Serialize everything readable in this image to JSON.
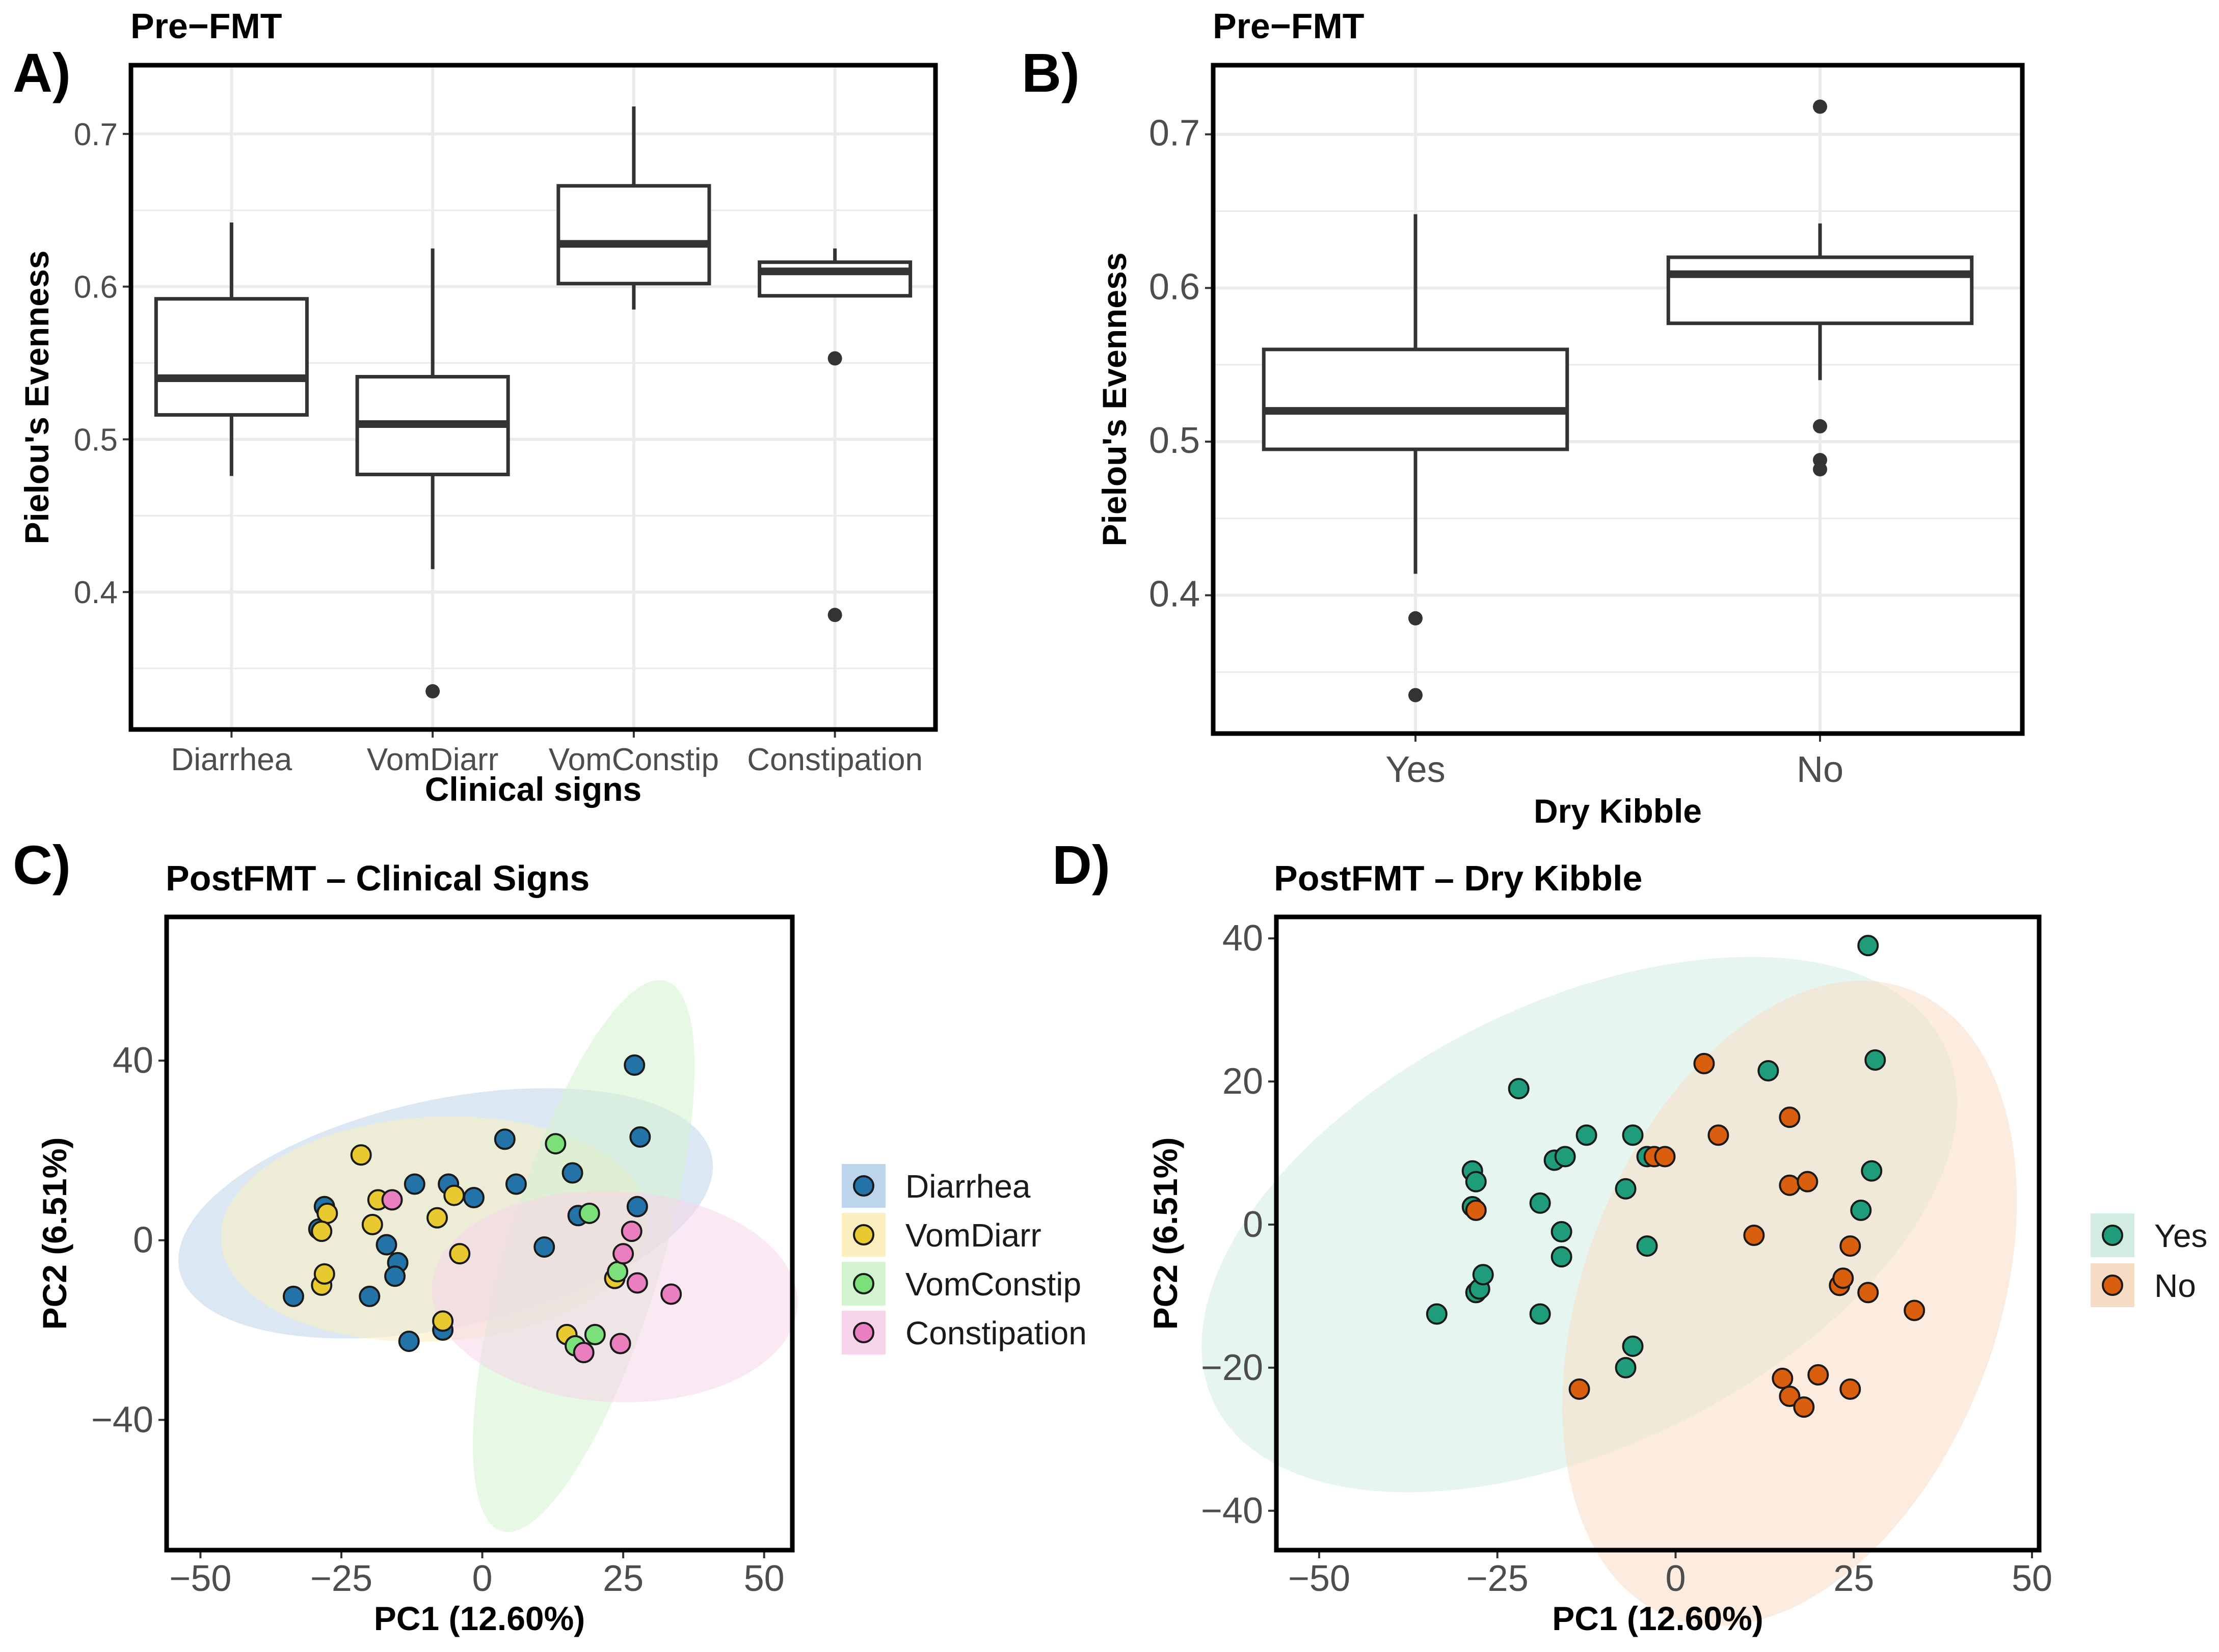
{
  "chart_data": [
    {
      "panel": "A)",
      "type": "box",
      "title": "Pre−FMT",
      "xlabel": "Clinical signs",
      "ylabel": "Pielou's Evenness",
      "ylim": [
        0.31,
        0.745
      ],
      "yticks": [
        0.4,
        0.5,
        0.6,
        0.7
      ],
      "ytick_labels": [
        "0.4",
        "0.5",
        "0.6",
        "0.7"
      ],
      "categories": [
        "Diarrhea",
        "VomDiarr",
        "VomConstip",
        "Constipation"
      ],
      "boxes": [
        {
          "category": "Diarrhea",
          "whisker_low": 0.476,
          "q1": 0.516,
          "median": 0.54,
          "q3": 0.592,
          "whisker_high": 0.642,
          "outliers": []
        },
        {
          "category": "VomDiarr",
          "whisker_low": 0.415,
          "q1": 0.477,
          "median": 0.51,
          "q3": 0.541,
          "whisker_high": 0.625,
          "outliers": [
            0.335
          ]
        },
        {
          "category": "VomConstip",
          "whisker_low": 0.585,
          "q1": 0.602,
          "median": 0.628,
          "q3": 0.666,
          "whisker_high": 0.718,
          "outliers": []
        },
        {
          "category": "Constipation",
          "whisker_low": 0.594,
          "q1": 0.594,
          "median": 0.61,
          "q3": 0.616,
          "whisker_high": 0.625,
          "outliers": [
            0.553,
            0.385
          ]
        }
      ]
    },
    {
      "panel": "B)",
      "type": "box",
      "title": "Pre−FMT",
      "xlabel": "Dry Kibble",
      "ylabel": "Pielou's Evenness",
      "ylim": [
        0.31,
        0.745
      ],
      "yticks": [
        0.4,
        0.5,
        0.6,
        0.7
      ],
      "ytick_labels": [
        "0.4",
        "0.5",
        "0.6",
        "0.7"
      ],
      "categories": [
        "Yes",
        "No"
      ],
      "boxes": [
        {
          "category": "Yes",
          "whisker_low": 0.414,
          "q1": 0.495,
          "median": 0.52,
          "q3": 0.56,
          "whisker_high": 0.648,
          "outliers": [
            0.385,
            0.335
          ]
        },
        {
          "category": "No",
          "whisker_low": 0.54,
          "q1": 0.577,
          "median": 0.609,
          "q3": 0.62,
          "whisker_high": 0.642,
          "outliers": [
            0.718,
            0.51,
            0.488,
            0.482
          ]
        }
      ]
    },
    {
      "panel": "C)",
      "type": "scatter",
      "title": "PostFMT – Clinical Signs",
      "xlabel": "PC1 (12.60%)",
      "ylabel": "PC2 (6.51%)",
      "xlim": [
        -56,
        55
      ],
      "ylim": [
        -69,
        72
      ],
      "xticks": [
        -50,
        -25,
        0,
        25,
        50
      ],
      "xtick_labels": [
        "−50",
        "−25",
        "0",
        "25",
        "50"
      ],
      "yticks": [
        -40,
        0,
        40
      ],
      "ytick_labels": [
        "−40",
        "0",
        "40"
      ],
      "legend_position": "right",
      "series": [
        {
          "name": "Diarrhea",
          "color": "#2473A8",
          "fill": "#BDD5EA",
          "ellipse": {
            "cx": -6.5,
            "cy": 6,
            "rx": 49,
            "ry": 25,
            "angle": 17
          },
          "points": [
            [
              -33.5,
              -12.5
            ],
            [
              -29,
              2.5
            ],
            [
              -28,
              7.5
            ],
            [
              -20,
              -12.5
            ],
            [
              -17,
              -1
            ],
            [
              -15,
              -5
            ],
            [
              -15.5,
              -8
            ],
            [
              -13,
              -22.5
            ],
            [
              -12,
              12.5
            ],
            [
              -7,
              -20
            ],
            [
              -6,
              12.5
            ],
            [
              -1.5,
              9.5
            ],
            [
              4,
              22.5
            ],
            [
              6,
              12.5
            ],
            [
              11,
              -1.5
            ],
            [
              16,
              15
            ],
            [
              17,
              5.5
            ],
            [
              27,
              39
            ],
            [
              28,
              23
            ],
            [
              27.5,
              7.5
            ]
          ]
        },
        {
          "name": "VomDiarr",
          "color": "#E8C930",
          "fill": "#FBEFC0",
          "ellipse": {
            "cx": -8.5,
            "cy": 2.5,
            "rx": 38,
            "ry": 25,
            "angle": 5
          },
          "points": [
            [
              -21.5,
              19
            ],
            [
              -28.5,
              -10
            ],
            [
              -28,
              -7.5
            ],
            [
              -27.5,
              6
            ],
            [
              -28.5,
              2
            ],
            [
              -19.5,
              3.5
            ],
            [
              -18.5,
              9
            ],
            [
              -8,
              5
            ],
            [
              -7,
              -18
            ],
            [
              -5,
              10
            ],
            [
              -4,
              -3
            ],
            [
              15,
              -21
            ],
            [
              23.5,
              -8.5
            ]
          ]
        },
        {
          "name": "VomConstip",
          "color": "#7CE07A",
          "fill": "#D4F3D0",
          "ellipse": {
            "cx": 18,
            "cy": -3.5,
            "rx": 63,
            "ry": 14,
            "angle": 77
          },
          "points": [
            [
              13,
              21.5
            ],
            [
              19,
              6
            ],
            [
              20,
              -21
            ],
            [
              24,
              -7
            ],
            [
              16.5,
              -23.5
            ]
          ]
        },
        {
          "name": "Constipation",
          "color": "#EA7FBF",
          "fill": "#F6D5EA",
          "ellipse": {
            "cx": 23.5,
            "cy": -12.5,
            "rx": 32.5,
            "ry": 23.5,
            "angle": -5
          },
          "points": [
            [
              -16,
              9
            ],
            [
              18,
              -25
            ],
            [
              24.5,
              -23
            ],
            [
              25,
              -3
            ],
            [
              26.5,
              2
            ],
            [
              27.5,
              -9.5
            ],
            [
              33.5,
              -12
            ]
          ]
        }
      ]
    },
    {
      "panel": "D)",
      "type": "scatter",
      "title": "PostFMT – Dry Kibble",
      "xlabel": "PC1 (12.60%)",
      "ylabel": "PC2 (6.51%)",
      "xlim": [
        -56,
        51
      ],
      "ylim": [
        -45.5,
        43
      ],
      "xticks": [
        -50,
        -25,
        0,
        25,
        50
      ],
      "xtick_labels": [
        "−50",
        "−25",
        "0",
        "25",
        "50"
      ],
      "yticks": [
        -40,
        -20,
        0,
        20,
        40
      ],
      "ytick_labels": [
        "−40",
        "−20",
        "0",
        "20",
        "40"
      ],
      "legend_position": "right",
      "series": [
        {
          "name": "Yes",
          "color": "#1F9D7A",
          "fill": "#D2ECE2",
          "ellipse": {
            "cx": -13.5,
            "cy": 0,
            "rx": 57,
            "ry": 31,
            "angle": 26
          },
          "points": [
            [
              -33.5,
              -12.5
            ],
            [
              -28.5,
              7.5
            ],
            [
              -28,
              6
            ],
            [
              -28.5,
              2.5
            ],
            [
              -28,
              -9.5
            ],
            [
              -27.5,
              -9
            ],
            [
              -27,
              -7
            ],
            [
              -22,
              19
            ],
            [
              -17,
              9
            ],
            [
              -15.5,
              9.5
            ],
            [
              -12.5,
              12.5
            ],
            [
              -19,
              3
            ],
            [
              -16,
              -1
            ],
            [
              -16,
              -4.5
            ],
            [
              -19,
              -12.5
            ],
            [
              -6,
              12.5
            ],
            [
              -7,
              5
            ],
            [
              -4,
              -3
            ],
            [
              -6,
              -17
            ],
            [
              -7,
              -20
            ],
            [
              -4,
              9.5
            ],
            [
              13,
              21.5
            ],
            [
              26,
              2
            ],
            [
              27,
              39
            ],
            [
              28,
              23
            ],
            [
              27.5,
              7.5
            ]
          ]
        },
        {
          "name": "No",
          "color": "#D95F0E",
          "fill": "#F7DCC5",
          "ellipse": {
            "cx": 16,
            "cy": -11,
            "rx": 47,
            "ry": 29,
            "angle": 69
          },
          "points": [
            [
              -28,
              2
            ],
            [
              -13.5,
              -23
            ],
            [
              -3,
              9.5
            ],
            [
              -1.5,
              9.5
            ],
            [
              4,
              22.5
            ],
            [
              6,
              12.5
            ],
            [
              11,
              -1.5
            ],
            [
              16,
              15
            ],
            [
              16,
              5.5
            ],
            [
              18.5,
              6
            ],
            [
              15,
              -21.5
            ],
            [
              16,
              -24
            ],
            [
              18,
              -25.5
            ],
            [
              20,
              -21
            ],
            [
              23,
              -8.5
            ],
            [
              23.5,
              -7.5
            ],
            [
              24.5,
              -3
            ],
            [
              24.5,
              -23
            ],
            [
              27,
              -9.5
            ],
            [
              33.5,
              -12
            ]
          ]
        }
      ]
    }
  ]
}
